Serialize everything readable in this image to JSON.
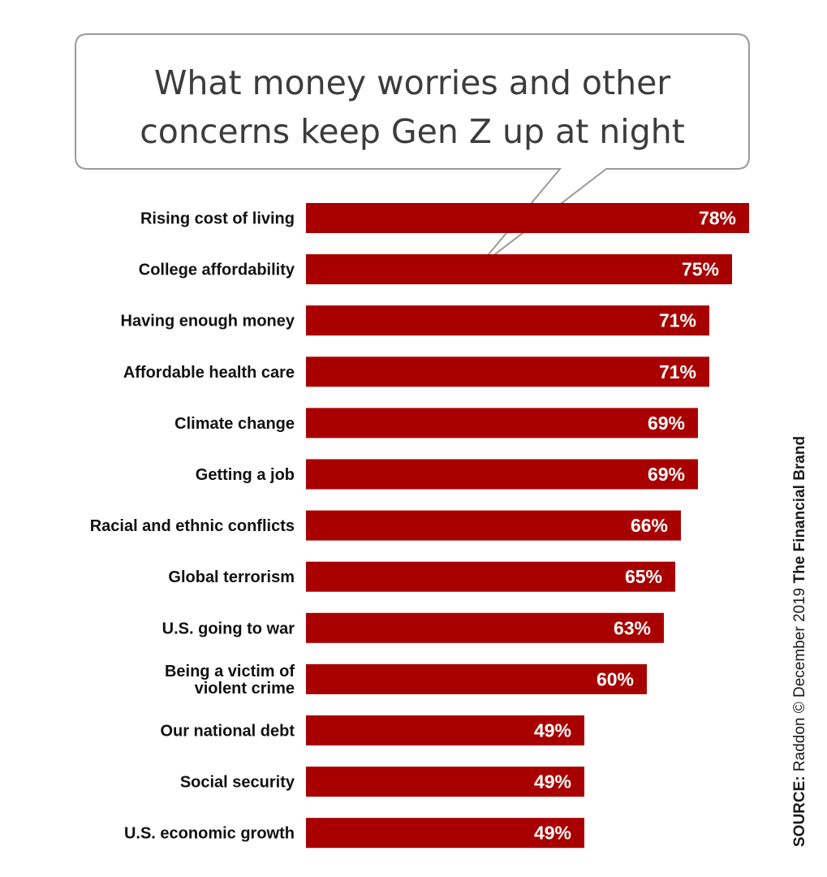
{
  "chart_data": {
    "type": "bar",
    "orientation": "horizontal",
    "title_lines": [
      "What money worries and other",
      "concerns keep Gen Z up at night"
    ],
    "categories": [
      [
        "Rising cost of living"
      ],
      [
        "College affordability"
      ],
      [
        "Having enough money"
      ],
      [
        "Affordable health care"
      ],
      [
        "Climate change"
      ],
      [
        "Getting a job"
      ],
      [
        "Racial and ethnic conflicts"
      ],
      [
        "Global terrorism"
      ],
      [
        "U.S. going to war"
      ],
      [
        "Being a victim of",
        "violent crime"
      ],
      [
        "Our national debt"
      ],
      [
        "Social security"
      ],
      [
        "U.S. economic growth"
      ]
    ],
    "values": [
      78,
      75,
      71,
      71,
      69,
      69,
      66,
      65,
      63,
      60,
      49,
      49,
      49
    ],
    "value_labels": [
      "78%",
      "75%",
      "71%",
      "71%",
      "69%",
      "69%",
      "66%",
      "65%",
      "63%",
      "60%",
      "49%",
      "49%",
      "49%"
    ],
    "xlim": [
      0,
      78
    ],
    "grid": false,
    "legend": "none",
    "bar_color": "#a80000"
  },
  "source": {
    "prefix": "SOURCE:",
    "text": "Raddon © December 2019",
    "brand": "The Financial Brand"
  }
}
